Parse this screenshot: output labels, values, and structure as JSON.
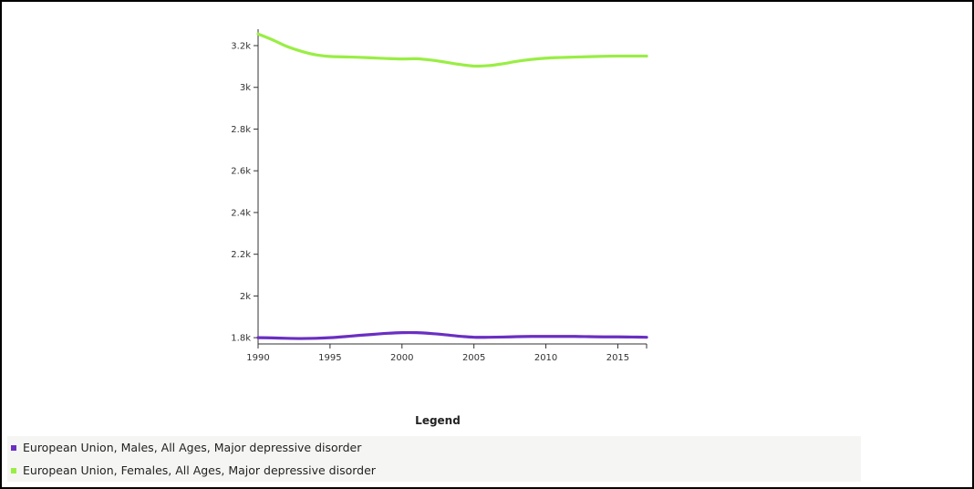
{
  "chart_data": {
    "type": "line",
    "title": "",
    "xlabel": "",
    "ylabel": "",
    "x": [
      1990,
      1991,
      1992,
      1993,
      1994,
      1995,
      1996,
      1997,
      1998,
      1999,
      2000,
      2001,
      2002,
      2003,
      2004,
      2005,
      2006,
      2007,
      2008,
      2009,
      2010,
      2011,
      2012,
      2013,
      2014,
      2015,
      2016,
      2017
    ],
    "series": [
      {
        "name": "European Union, Males, All Ages, Major depressive disorder",
        "color": "#6a2fc2",
        "values": [
          1800,
          1799,
          1797,
          1796,
          1797,
          1800,
          1805,
          1811,
          1816,
          1821,
          1824,
          1824,
          1820,
          1814,
          1807,
          1802,
          1802,
          1803,
          1805,
          1806,
          1806,
          1806,
          1806,
          1805,
          1804,
          1804,
          1803,
          1802
        ]
      },
      {
        "name": "European Union, Females, All Ages, Major depressive disorder",
        "color": "#99ee44",
        "values": [
          3256,
          3228,
          3196,
          3173,
          3156,
          3148,
          3146,
          3144,
          3141,
          3138,
          3136,
          3137,
          3131,
          3121,
          3110,
          3102,
          3104,
          3113,
          3125,
          3134,
          3140,
          3143,
          3145,
          3147,
          3149,
          3150,
          3150,
          3150
        ]
      }
    ],
    "xlim": [
      1990,
      2017
    ],
    "ylim": [
      1770,
      3270
    ],
    "x_ticks": [
      "1990",
      "1995",
      "2000",
      "2005",
      "2010",
      "2015"
    ],
    "y_ticks": [
      "1.8k",
      "2k",
      "2.2k",
      "2.4k",
      "2.6k",
      "2.8k",
      "3k",
      "3.2k"
    ],
    "grid": false,
    "legend_title": "Legend",
    "legend_position": "bottom"
  }
}
